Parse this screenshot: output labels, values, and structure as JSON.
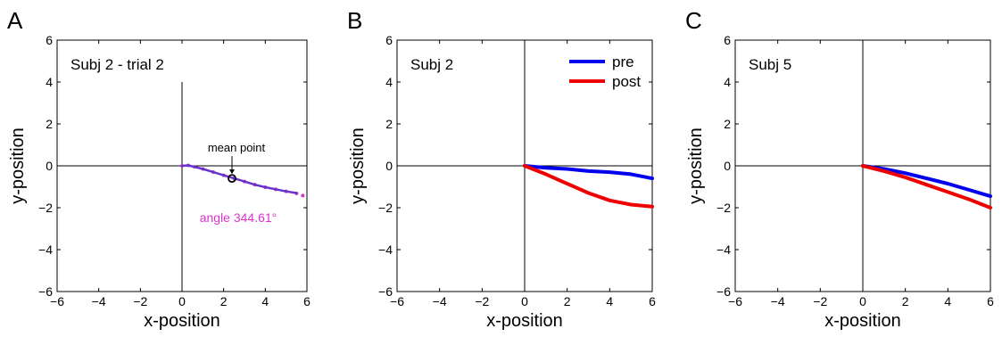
{
  "chart_data": [
    {
      "type": "line",
      "letter": "A",
      "title": "Subj 2 - trial 2",
      "xlabel": "x-position",
      "ylabel": "y-position",
      "xlim": [
        -6,
        6
      ],
      "ylim": [
        -6,
        6
      ],
      "xticks": [
        -6,
        -4,
        -2,
        0,
        2,
        4,
        6
      ],
      "yticks": [
        -6,
        -4,
        -2,
        0,
        2,
        4,
        6
      ],
      "grid": false,
      "series": [
        {
          "color": "#cc33cc",
          "style": "dots",
          "x": [
            0,
            0.3,
            0.6,
            1.0,
            1.5,
            2.0,
            2.5,
            3.0,
            3.5,
            4.0,
            4.5,
            5.0,
            5.5,
            5.8
          ],
          "y": [
            0,
            0.02,
            -0.05,
            -0.15,
            -0.3,
            -0.45,
            -0.6,
            -0.75,
            -0.9,
            -1.02,
            -1.12,
            -1.22,
            -1.32,
            -1.42
          ]
        },
        {
          "color": "#6633cc",
          "style": "line",
          "x": [
            0,
            0.3,
            0.6,
            1.0,
            1.5,
            2.0,
            2.5,
            3.0,
            3.5,
            4.0,
            4.5,
            5.0,
            5.5
          ],
          "y": [
            0,
            0.02,
            -0.05,
            -0.15,
            -0.3,
            -0.45,
            -0.6,
            -0.75,
            -0.9,
            -1.02,
            -1.12,
            -1.22,
            -1.3
          ]
        }
      ],
      "mean_point": {
        "x": 2.4,
        "y": -0.6,
        "label": "mean point"
      },
      "angle_label": "angle 344.61°",
      "angle_color": "#dd33cc"
    },
    {
      "type": "line",
      "letter": "B",
      "title": "Subj 2",
      "xlabel": "x-position",
      "ylabel": "y-position",
      "xlim": [
        -6,
        6
      ],
      "ylim": [
        -6,
        6
      ],
      "xticks": [
        -6,
        -4,
        -2,
        0,
        2,
        4,
        6
      ],
      "yticks": [
        -6,
        -4,
        -2,
        0,
        2,
        4,
        6
      ],
      "grid": false,
      "legend_position": "top-right",
      "series": [
        {
          "name": "pre",
          "color": "#0000ee",
          "style": "line",
          "x": [
            0,
            1,
            2,
            3,
            4,
            5,
            6
          ],
          "y": [
            0,
            -0.1,
            -0.15,
            -0.25,
            -0.3,
            -0.4,
            -0.6
          ]
        },
        {
          "name": "post",
          "color": "#ee0000",
          "style": "line",
          "x": [
            0,
            1,
            2,
            3,
            4,
            5,
            6
          ],
          "y": [
            0,
            -0.4,
            -0.85,
            -1.3,
            -1.65,
            -1.85,
            -1.95
          ]
        }
      ]
    },
    {
      "type": "line",
      "letter": "C",
      "title": "Subj 5",
      "xlabel": "x-position",
      "ylabel": "y-position",
      "xlim": [
        -6,
        6
      ],
      "ylim": [
        -6,
        6
      ],
      "xticks": [
        -6,
        -4,
        -2,
        0,
        2,
        4,
        6
      ],
      "yticks": [
        -6,
        -4,
        -2,
        0,
        2,
        4,
        6
      ],
      "grid": false,
      "series": [
        {
          "color": "#0000ee",
          "style": "line",
          "x": [
            0,
            1,
            2,
            3,
            4,
            5,
            6
          ],
          "y": [
            0,
            -0.15,
            -0.35,
            -0.6,
            -0.85,
            -1.15,
            -1.45
          ]
        },
        {
          "color": "#ee0000",
          "style": "line",
          "x": [
            0,
            1,
            2,
            3,
            4,
            5,
            6
          ],
          "y": [
            0,
            -0.25,
            -0.55,
            -0.9,
            -1.25,
            -1.6,
            -2.0
          ]
        }
      ]
    }
  ]
}
